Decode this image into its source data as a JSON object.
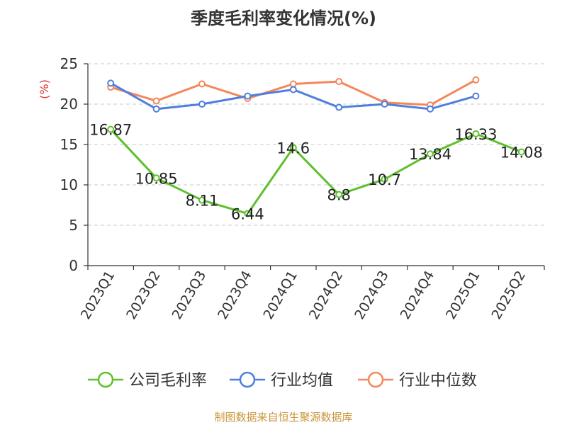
{
  "chart_data": {
    "type": "line",
    "title": "季度毛利率变化情况(%)",
    "ylabel": "(%)",
    "xlabel": "",
    "ylim": [
      0,
      25
    ],
    "yticks": [
      0,
      5,
      10,
      15,
      20,
      25
    ],
    "grid": "horizontal-dashed",
    "legend_position": "bottom",
    "categories": [
      "2023Q1",
      "2023Q2",
      "2023Q3",
      "2023Q4",
      "2024Q1",
      "2024Q2",
      "2024Q3",
      "2024Q4",
      "2025Q1",
      "2025Q2"
    ],
    "series": [
      {
        "name": "公司毛利率",
        "color": "#5ec12c",
        "values": [
          16.87,
          10.85,
          8.11,
          6.44,
          14.6,
          8.8,
          10.7,
          13.84,
          16.33,
          14.08
        ],
        "data_labels": [
          "16.87",
          "10.85",
          "8.11",
          "6.44",
          "14.6",
          "8.8",
          "10.7",
          "13.84",
          "16.33",
          "14.08"
        ]
      },
      {
        "name": "行业均值",
        "color": "#4f7fdd",
        "values": [
          22.6,
          19.4,
          20.0,
          21.0,
          21.8,
          19.6,
          20.0,
          19.4,
          21.0,
          null
        ]
      },
      {
        "name": "行业中位数",
        "color": "#f5875a",
        "values": [
          22.1,
          20.4,
          22.5,
          20.7,
          22.5,
          22.8,
          20.2,
          19.9,
          23.0,
          null
        ]
      }
    ]
  },
  "colors": {
    "ylabel": "#e03131",
    "source": "#c8943a"
  },
  "footer": {
    "source": "制图数据来自恒生聚源数据库"
  }
}
